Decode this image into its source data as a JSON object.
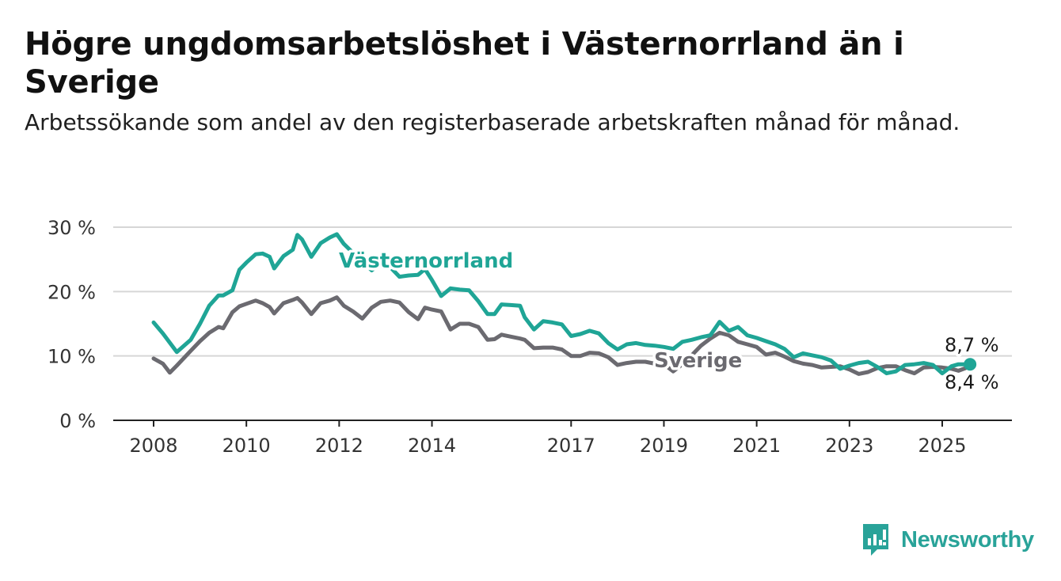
{
  "header": {
    "title": "Högre ungdomsarbetslöshet i Västernorrland än i Sverige",
    "subtitle": "Arbetssökande som andel av den registerbaserade arbetskraften månad för månad."
  },
  "brand": {
    "name": "Newsworthy",
    "color": "#29a399"
  },
  "chart_data": {
    "type": "line",
    "title": "Högre ungdomsarbetslöshet i Västernorrland än i Sverige",
    "subtitle": "Arbetssökande som andel av den registerbaserade arbetskraften månad för månad.",
    "y_unit": "%",
    "ylim": [
      0,
      30
    ],
    "y_ticks": [
      0,
      10,
      20,
      30
    ],
    "y_tick_labels": [
      "0 %",
      "10 %",
      "20 %",
      "30 %"
    ],
    "xlim": [
      2007.5,
      2026.5
    ],
    "x_ticks": [
      2008,
      2010,
      2012,
      2014,
      2017,
      2019,
      2021,
      2023,
      2025
    ],
    "x_tick_labels": [
      "2008",
      "2010",
      "2012",
      "2014",
      "2017",
      "2019",
      "2021",
      "2023",
      "2025"
    ],
    "grid": "horizontal",
    "series": [
      {
        "name": "Västernorrland",
        "color": "#1fa596",
        "x": [
          2008.0,
          2008.2,
          2008.5,
          2008.8,
          2009.0,
          2009.2,
          2009.4,
          2009.5,
          2009.7,
          2009.85,
          2010.0,
          2010.2,
          2010.35,
          2010.5,
          2010.6,
          2010.8,
          2011.0,
          2011.1,
          2011.2,
          2011.4,
          2011.6,
          2011.8,
          2011.95,
          2012.1,
          2012.3,
          2012.5,
          2012.7,
          2012.9,
          2013.1,
          2013.3,
          2013.5,
          2013.7,
          2013.85,
          2014.0,
          2014.2,
          2014.4,
          2014.6,
          2014.8,
          2015.0,
          2015.2,
          2015.35,
          2015.5,
          2015.7,
          2015.9,
          2016.0,
          2016.2,
          2016.4,
          2016.6,
          2016.8,
          2017.0,
          2017.2,
          2017.4,
          2017.6,
          2017.8,
          2018.0,
          2018.2,
          2018.4,
          2018.6,
          2018.8,
          2019.0,
          2019.2,
          2019.4,
          2019.6,
          2019.8,
          2020.0,
          2020.2,
          2020.4,
          2020.6,
          2020.8,
          2021.0,
          2021.2,
          2021.4,
          2021.6,
          2021.8,
          2022.0,
          2022.2,
          2022.4,
          2022.6,
          2022.8,
          2023.0,
          2023.2,
          2023.4,
          2023.6,
          2023.8,
          2024.0,
          2024.2,
          2024.4,
          2024.6,
          2024.8,
          2025.0,
          2025.2,
          2025.35,
          2025.5,
          2025.6
        ],
        "values": [
          15.2,
          13.5,
          10.6,
          12.5,
          15.0,
          17.8,
          19.4,
          19.4,
          20.2,
          23.4,
          24.5,
          25.8,
          25.9,
          25.4,
          23.6,
          25.5,
          26.5,
          28.8,
          28.1,
          25.4,
          27.5,
          28.4,
          28.9,
          27.4,
          26.0,
          24.8,
          23.3,
          24.4,
          23.8,
          22.3,
          22.5,
          22.6,
          23.5,
          21.8,
          19.3,
          20.5,
          20.3,
          20.2,
          18.5,
          16.5,
          16.5,
          18.0,
          17.9,
          17.8,
          16.0,
          14.1,
          15.4,
          15.2,
          14.9,
          13.1,
          13.4,
          13.9,
          13.5,
          12.0,
          11.0,
          11.8,
          12.0,
          11.7,
          11.6,
          11.4,
          11.1,
          12.2,
          12.5,
          12.9,
          13.2,
          15.3,
          13.9,
          14.5,
          13.2,
          12.8,
          12.3,
          11.8,
          11.1,
          9.8,
          10.4,
          10.1,
          9.8,
          9.3,
          8.0,
          8.5,
          8.9,
          9.1,
          8.3,
          7.3,
          7.6,
          8.6,
          8.7,
          8.9,
          8.6,
          7.3,
          8.4,
          8.7,
          8.7,
          8.7
        ],
        "end_label": "8,7 %"
      },
      {
        "name": "Sverige",
        "color": "#6b6a70",
        "x": [
          2008.0,
          2008.2,
          2008.35,
          2008.5,
          2008.8,
          2009.0,
          2009.2,
          2009.4,
          2009.5,
          2009.7,
          2009.85,
          2010.0,
          2010.2,
          2010.35,
          2010.5,
          2010.6,
          2010.8,
          2011.0,
          2011.1,
          2011.2,
          2011.4,
          2011.6,
          2011.8,
          2011.95,
          2012.1,
          2012.3,
          2012.5,
          2012.7,
          2012.9,
          2013.1,
          2013.3,
          2013.5,
          2013.7,
          2013.85,
          2014.0,
          2014.2,
          2014.4,
          2014.6,
          2014.8,
          2015.0,
          2015.2,
          2015.35,
          2015.5,
          2015.7,
          2015.9,
          2016.0,
          2016.2,
          2016.4,
          2016.6,
          2016.8,
          2017.0,
          2017.2,
          2017.4,
          2017.6,
          2017.8,
          2018.0,
          2018.2,
          2018.4,
          2018.6,
          2018.8,
          2019.0,
          2019.2,
          2019.4,
          2019.6,
          2019.8,
          2020.0,
          2020.2,
          2020.4,
          2020.6,
          2020.8,
          2021.0,
          2021.2,
          2021.4,
          2021.6,
          2021.8,
          2022.0,
          2022.2,
          2022.4,
          2022.6,
          2022.8,
          2023.0,
          2023.2,
          2023.4,
          2023.6,
          2023.8,
          2024.0,
          2024.2,
          2024.4,
          2024.6,
          2024.8,
          2025.0,
          2025.2,
          2025.35,
          2025.5,
          2025.6
        ],
        "values": [
          9.6,
          8.8,
          7.4,
          8.5,
          10.8,
          12.3,
          13.6,
          14.5,
          14.3,
          16.8,
          17.7,
          18.1,
          18.6,
          18.2,
          17.6,
          16.6,
          18.2,
          18.7,
          19.0,
          18.3,
          16.5,
          18.2,
          18.6,
          19.1,
          17.8,
          16.9,
          15.8,
          17.5,
          18.4,
          18.6,
          18.3,
          16.8,
          15.7,
          17.5,
          17.2,
          16.9,
          14.1,
          15.0,
          15.0,
          14.5,
          12.5,
          12.6,
          13.3,
          13.0,
          12.7,
          12.5,
          11.2,
          11.3,
          11.3,
          11.0,
          10.0,
          10.0,
          10.5,
          10.4,
          9.8,
          8.6,
          8.9,
          9.1,
          9.1,
          8.8,
          8.7,
          7.6,
          8.7,
          10.1,
          11.6,
          12.7,
          13.6,
          13.2,
          12.2,
          11.8,
          11.4,
          10.2,
          10.5,
          9.9,
          9.2,
          8.8,
          8.6,
          8.2,
          8.3,
          8.4,
          7.9,
          7.2,
          7.5,
          8.1,
          8.4,
          8.4,
          7.8,
          7.3,
          8.2,
          8.3,
          8.2,
          8.0,
          7.7,
          8.1,
          8.4
        ],
        "end_label": "8,4 %"
      }
    ]
  }
}
